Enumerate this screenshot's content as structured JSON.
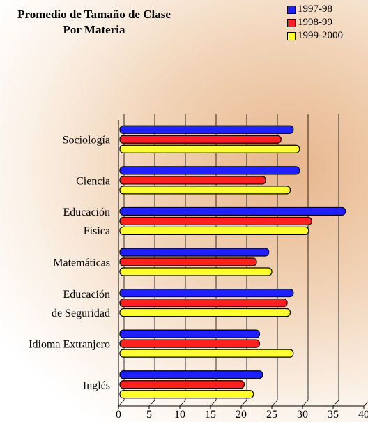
{
  "chart_data": {
    "type": "barh",
    "title": "Promedio de Tamaño de Clase\nPor Materia",
    "categories": [
      "Sociología",
      "Ciencia",
      "Educación\nFísica",
      "Matemáticas",
      "Educación\nde Seguridad",
      "Idioma Extranjero",
      "Inglés"
    ],
    "series": [
      {
        "name": "1997-98",
        "color": "#2020ff",
        "values": [
          28.5,
          29.5,
          37,
          24.5,
          28.5,
          23,
          23.5
        ]
      },
      {
        "name": "1998-99",
        "color": "#ff2020",
        "values": [
          26.5,
          24,
          31.5,
          22.5,
          27.5,
          23,
          20.5
        ]
      },
      {
        "name": "1999-2000",
        "color": "#ffff30",
        "values": [
          29.5,
          28,
          31,
          25,
          28,
          28.5,
          22
        ]
      }
    ],
    "xlim": [
      0,
      40
    ],
    "xticks": [
      0,
      5,
      10,
      15,
      20,
      25,
      30,
      35,
      40
    ],
    "grid": true,
    "legend": "top-right"
  }
}
